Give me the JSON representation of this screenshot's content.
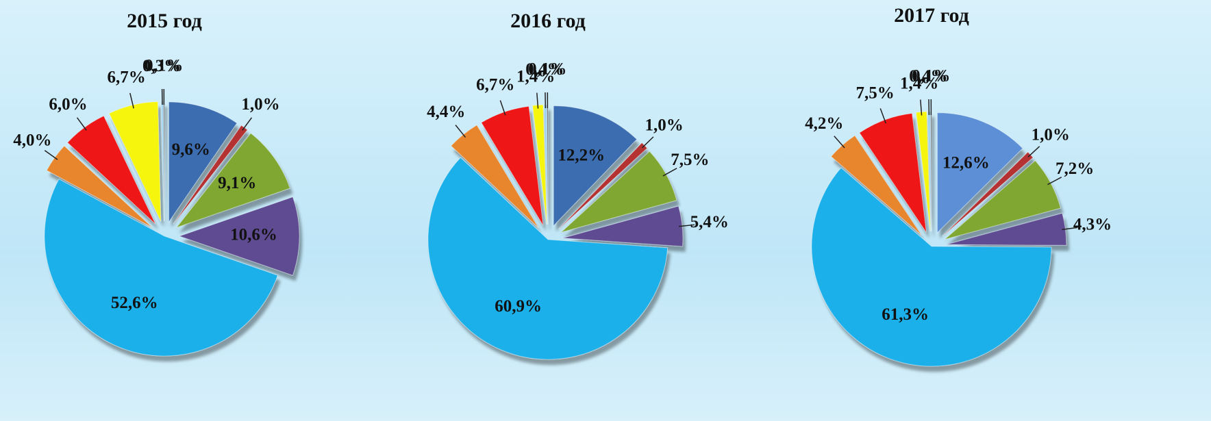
{
  "chart_data": [
    {
      "type": "pie",
      "title": "2015 год",
      "values": [
        9.6,
        1.0,
        9.1,
        10.6,
        52.6,
        4.0,
        6.0,
        6.7,
        0.3,
        0.1
      ],
      "value_labels": [
        "9,6%",
        "1,0%",
        "9,1%",
        "10,6%",
        "52,6%",
        "4,0%",
        "6,0%",
        "6,7%",
        "0,3%",
        "0,1%"
      ],
      "colors": [
        "#3b6db0",
        "#b53232",
        "#7fa731",
        "#5f4b91",
        "#1fb0ea",
        "#e8862d",
        "#ee1414",
        "#f5f511",
        "#9fd3f0",
        "#333333"
      ]
    },
    {
      "type": "pie",
      "title": "2016 год",
      "values": [
        12.2,
        1.0,
        7.5,
        5.4,
        60.9,
        4.4,
        6.7,
        1.4,
        0.4,
        0.1
      ],
      "value_labels": [
        "12,2%",
        "1,0%",
        "7,5%",
        "5,4%",
        "60,9%",
        "4,4%",
        "6,7%",
        "1,4%",
        "0,4%",
        "0,1%"
      ],
      "colors": [
        "#3b6db0",
        "#b53232",
        "#7fa731",
        "#5f4b91",
        "#1fb0ea",
        "#e8862d",
        "#ee1414",
        "#f5f511",
        "#9fd3f0",
        "#333333"
      ]
    },
    {
      "type": "pie",
      "title": "2017 год",
      "values": [
        12.6,
        1.0,
        7.2,
        4.3,
        61.3,
        4.2,
        7.5,
        1.4,
        0.4,
        0.1
      ],
      "value_labels": [
        "12,6%",
        "1,0%",
        "7,2%",
        "4,3%",
        "61,3%",
        "4,2%",
        "7,5%",
        "1,4%",
        "0,4%",
        "0,1%"
      ],
      "colors": [
        "#5b8fd6",
        "#b53232",
        "#7fa731",
        "#5f4b91",
        "#1fb0ea",
        "#e8862d",
        "#ee1414",
        "#f5f511",
        "#9fd3f0",
        "#333333"
      ]
    }
  ]
}
